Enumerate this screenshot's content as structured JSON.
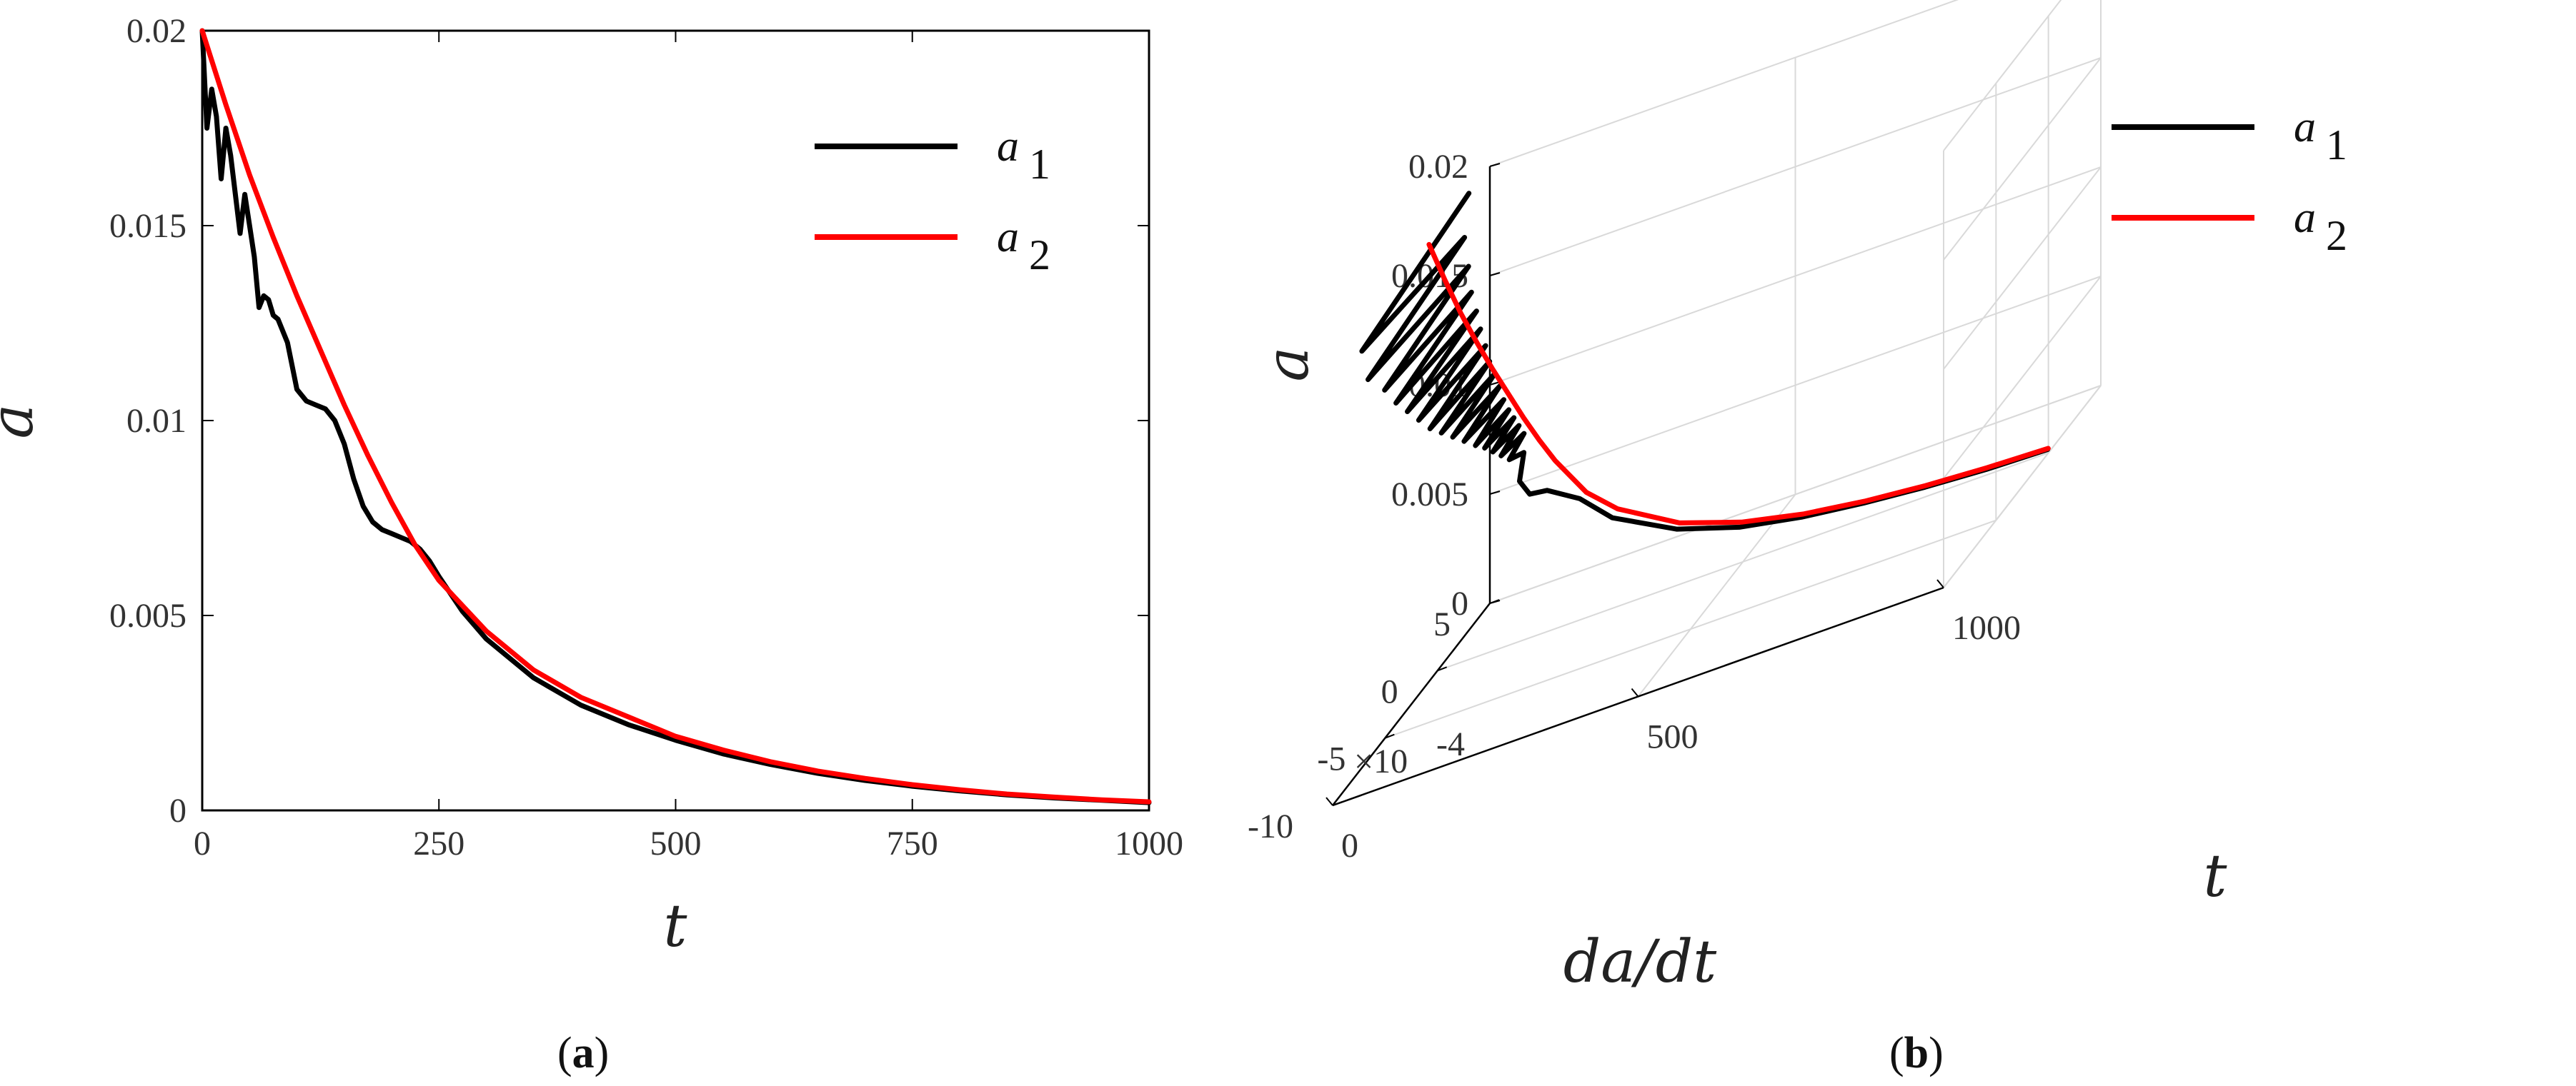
{
  "chart_data": [
    {
      "id": "a",
      "type": "line",
      "caption_label": "a",
      "title": "",
      "xlabel": "t",
      "ylabel": "a",
      "xlim": [
        0,
        1000
      ],
      "ylim": [
        0,
        0.02
      ],
      "xticks": [
        "0",
        "250",
        "500",
        "750",
        "1000"
      ],
      "yticks": [
        "0",
        "0.005",
        "0.01",
        "0.015",
        "0.02"
      ],
      "legend_position": "top-right",
      "series": [
        {
          "name": "a 1",
          "legend_main": "a",
          "legend_sub": "1",
          "color": "#000000",
          "x": [
            0,
            5,
            10,
            15,
            20,
            25,
            30,
            35,
            40,
            45,
            50,
            55,
            60,
            65,
            70,
            75,
            80,
            90,
            100,
            110,
            120,
            130,
            140,
            150,
            160,
            170,
            180,
            190,
            200,
            210,
            220,
            230,
            240,
            250,
            275,
            300,
            350,
            400,
            450,
            500,
            550,
            600,
            650,
            700,
            750,
            800,
            850,
            900,
            950,
            1000
          ],
          "y": [
            0.02,
            0.0175,
            0.0185,
            0.0178,
            0.0162,
            0.0175,
            0.0168,
            0.0158,
            0.0148,
            0.0158,
            0.015,
            0.0142,
            0.0129,
            0.0132,
            0.0131,
            0.0127,
            0.0126,
            0.012,
            0.0108,
            0.0105,
            0.0104,
            0.0103,
            0.01,
            0.0094,
            0.0085,
            0.0078,
            0.0074,
            0.0072,
            0.0071,
            0.007,
            0.0069,
            0.0067,
            0.0064,
            0.006,
            0.0051,
            0.0044,
            0.0034,
            0.0027,
            0.0022,
            0.0018,
            0.00145,
            0.00118,
            0.00095,
            0.00077,
            0.00062,
            0.0005,
            0.0004,
            0.00032,
            0.00026,
            0.0002
          ]
        },
        {
          "name": "a 2",
          "legend_main": "a",
          "legend_sub": "2",
          "color": "#ff0000",
          "x": [
            0,
            25,
            50,
            75,
            100,
            125,
            150,
            175,
            200,
            225,
            250,
            300,
            350,
            400,
            450,
            500,
            550,
            600,
            650,
            700,
            750,
            800,
            850,
            900,
            950,
            1000
          ],
          "y": [
            0.02,
            0.0181,
            0.0163,
            0.0147,
            0.0132,
            0.0118,
            0.0104,
            0.0091,
            0.0079,
            0.0068,
            0.0059,
            0.0046,
            0.0036,
            0.0029,
            0.0024,
            0.0019,
            0.00155,
            0.00125,
            0.00101,
            0.00082,
            0.00066,
            0.00053,
            0.00042,
            0.00034,
            0.00027,
            0.00022
          ]
        }
      ]
    },
    {
      "id": "b",
      "type": "line3d",
      "caption_label": "b",
      "title": "",
      "xlabel": "t",
      "ylabel": "da/dt",
      "zlabel": "a",
      "xlim": [
        0,
        1000
      ],
      "ylim": [
        -10,
        5
      ],
      "zlim": [
        0,
        0.02
      ],
      "xticks": [
        "0",
        "500",
        "1000"
      ],
      "yticks": [
        "5",
        "0",
        "-5",
        "-10"
      ],
      "zticks": [
        "0",
        "0.005",
        "0.01",
        "0.015",
        "0.02"
      ],
      "y_multiplier": "×10",
      "y_multiplier_exp": "-4",
      "legend_position": "top-right",
      "series": [
        {
          "name": "a 1",
          "legend_main": "a",
          "legend_sub": "1",
          "color": "#000000",
          "t": [
            0,
            5,
            10,
            15,
            20,
            25,
            30,
            35,
            40,
            45,
            50,
            55,
            60,
            65,
            70,
            75,
            80,
            85,
            90,
            95,
            100,
            105,
            110,
            115,
            120,
            125,
            130,
            135,
            140,
            145,
            150,
            160,
            175,
            200,
            250,
            300,
            400,
            500,
            600,
            700,
            800,
            900,
            1000
          ],
          "dadt": [
            3.0,
            -7.5,
            2.0,
            -7.5,
            1.8,
            -6.5,
            1.5,
            -6.0,
            1.4,
            -5.5,
            1.2,
            -5.0,
            1.1,
            -4.5,
            0.9,
            -4.0,
            0.8,
            -3.5,
            0.7,
            -3.0,
            0.5,
            -2.5,
            0.4,
            -2.2,
            0.3,
            -2.0,
            0.2,
            -1.8,
            0.1,
            -1.6,
            -0.5,
            -1.5,
            -1.4,
            -1.2,
            -1.0,
            -0.8,
            -0.5,
            -0.35,
            -0.25,
            -0.18,
            -0.12,
            -0.09,
            -0.07
          ],
          "a": [
            0.02,
            0.0192,
            0.0185,
            0.0178,
            0.0172,
            0.0166,
            0.0161,
            0.0156,
            0.0152,
            0.0148,
            0.0144,
            0.014,
            0.0136,
            0.0132,
            0.0129,
            0.0126,
            0.0123,
            0.012,
            0.0117,
            0.0114,
            0.0111,
            0.0108,
            0.0106,
            0.0104,
            0.0102,
            0.01,
            0.0098,
            0.0096,
            0.0094,
            0.0092,
            0.0088,
            0.008,
            0.0072,
            0.007,
            0.006,
            0.0045,
            0.0028,
            0.0018,
            0.0012,
            0.0008,
            0.0005,
            0.0003,
            0.0002
          ]
        },
        {
          "name": "a 2",
          "legend_main": "a",
          "legend_sub": "2",
          "color": "#ff0000",
          "t": [
            0,
            25,
            50,
            75,
            100,
            125,
            150,
            175,
            200,
            250,
            300,
            400,
            500,
            600,
            700,
            800,
            900,
            1000
          ],
          "dadt": [
            -0.8,
            -0.75,
            -0.7,
            -0.65,
            -0.6,
            -0.56,
            -0.52,
            -0.48,
            -0.44,
            -0.37,
            -0.3,
            -0.2,
            -0.14,
            -0.1,
            -0.07,
            -0.05,
            -0.035,
            -0.02
          ],
          "a": [
            0.02,
            0.0181,
            0.0163,
            0.0147,
            0.0132,
            0.0118,
            0.0104,
            0.0091,
            0.0079,
            0.0059,
            0.0046,
            0.0029,
            0.0019,
            0.00125,
            0.00082,
            0.00053,
            0.00034,
            0.00022
          ]
        }
      ]
    }
  ]
}
